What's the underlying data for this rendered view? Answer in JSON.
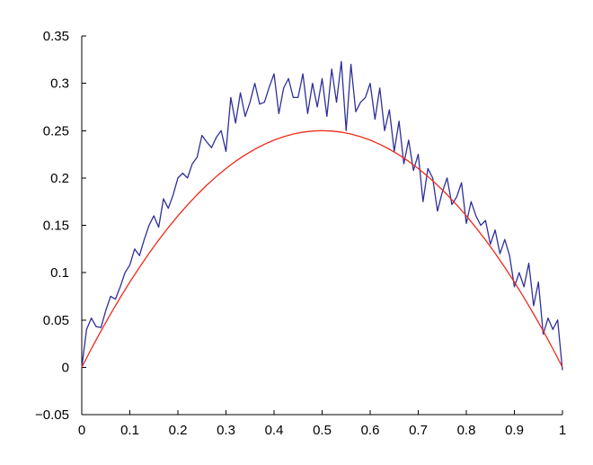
{
  "chart_data": {
    "type": "line",
    "title": "",
    "xlabel": "",
    "ylabel": "",
    "xlim": [
      0,
      1
    ],
    "ylim": [
      -0.05,
      0.35
    ],
    "grid": false,
    "legend": "none",
    "x_ticks": [
      0,
      0.1,
      0.2,
      0.3,
      0.4,
      0.5,
      0.6,
      0.7,
      0.8,
      0.9,
      1
    ],
    "x_tick_labels": [
      "0",
      "0.1",
      "0.2",
      "0.3",
      "0.4",
      "0.5",
      "0.6",
      "0.7",
      "0.8",
      "0.9",
      "1"
    ],
    "y_ticks": [
      -0.05,
      0,
      0.05,
      0.1,
      0.15,
      0.2,
      0.25,
      0.3,
      0.35
    ],
    "y_tick_labels": [
      "−0.05",
      "0",
      "0.05",
      "0.1",
      "0.15",
      "0.2",
      "0.25",
      "0.3",
      "0.35"
    ],
    "series": [
      {
        "color": "#2f2f9c",
        "x": [
          0.0,
          0.01,
          0.02,
          0.03,
          0.04,
          0.05,
          0.06,
          0.07,
          0.08,
          0.09,
          0.1,
          0.11,
          0.12,
          0.13,
          0.14,
          0.15,
          0.16,
          0.17,
          0.18,
          0.19,
          0.2,
          0.21,
          0.22,
          0.23,
          0.24,
          0.25,
          0.26,
          0.27,
          0.28,
          0.29,
          0.3,
          0.31,
          0.32,
          0.33,
          0.34,
          0.35,
          0.36,
          0.37,
          0.38,
          0.39,
          0.4,
          0.41,
          0.42,
          0.43,
          0.44,
          0.45,
          0.46,
          0.47,
          0.48,
          0.49,
          0.5,
          0.51,
          0.52,
          0.53,
          0.54,
          0.55,
          0.56,
          0.57,
          0.58,
          0.59,
          0.6,
          0.61,
          0.62,
          0.63,
          0.64,
          0.65,
          0.66,
          0.67,
          0.68,
          0.69,
          0.7,
          0.71,
          0.72,
          0.73,
          0.74,
          0.75,
          0.76,
          0.77,
          0.78,
          0.79,
          0.8,
          0.81,
          0.82,
          0.83,
          0.84,
          0.85,
          0.86,
          0.87,
          0.88,
          0.89,
          0.9,
          0.91,
          0.92,
          0.93,
          0.94,
          0.95,
          0.96,
          0.97,
          0.98,
          0.99,
          1.0
        ],
        "y": [
          0.0,
          0.04,
          0.052,
          0.043,
          0.042,
          0.06,
          0.075,
          0.072,
          0.085,
          0.1,
          0.108,
          0.125,
          0.118,
          0.135,
          0.15,
          0.16,
          0.148,
          0.178,
          0.168,
          0.182,
          0.2,
          0.205,
          0.2,
          0.215,
          0.222,
          0.245,
          0.238,
          0.232,
          0.243,
          0.25,
          0.228,
          0.285,
          0.258,
          0.29,
          0.265,
          0.28,
          0.3,
          0.278,
          0.28,
          0.296,
          0.31,
          0.268,
          0.295,
          0.305,
          0.285,
          0.285,
          0.31,
          0.268,
          0.3,
          0.275,
          0.305,
          0.265,
          0.315,
          0.28,
          0.323,
          0.25,
          0.32,
          0.27,
          0.28,
          0.285,
          0.3,
          0.262,
          0.295,
          0.25,
          0.272,
          0.228,
          0.26,
          0.215,
          0.24,
          0.208,
          0.225,
          0.175,
          0.21,
          0.2,
          0.165,
          0.185,
          0.2,
          0.172,
          0.18,
          0.195,
          0.152,
          0.175,
          0.16,
          0.15,
          0.155,
          0.13,
          0.145,
          0.12,
          0.135,
          0.118,
          0.085,
          0.1,
          0.085,
          0.11,
          0.065,
          0.09,
          0.035,
          0.052,
          0.04,
          0.05,
          -0.003
        ]
      },
      {
        "color": "#ee2a1b",
        "function": "y = x(1 - x)",
        "x": [
          0.0,
          0.02,
          0.04,
          0.06,
          0.08,
          0.1,
          0.12,
          0.14,
          0.16,
          0.18,
          0.2,
          0.22,
          0.24,
          0.26,
          0.28,
          0.3,
          0.32,
          0.34,
          0.36,
          0.38,
          0.4,
          0.42,
          0.44,
          0.46,
          0.48,
          0.5,
          0.52,
          0.54,
          0.56,
          0.58,
          0.6,
          0.62,
          0.64,
          0.66,
          0.68,
          0.7,
          0.72,
          0.74,
          0.76,
          0.78,
          0.8,
          0.82,
          0.84,
          0.86,
          0.88,
          0.9,
          0.92,
          0.94,
          0.96,
          0.98,
          1.0
        ],
        "y": [
          0.0,
          0.0196,
          0.0384,
          0.0564,
          0.0736,
          0.09,
          0.1056,
          0.1204,
          0.1344,
          0.1476,
          0.16,
          0.1716,
          0.1824,
          0.1924,
          0.2016,
          0.21,
          0.2176,
          0.2244,
          0.2304,
          0.2356,
          0.24,
          0.2436,
          0.2464,
          0.2484,
          0.2496,
          0.25,
          0.2496,
          0.2484,
          0.2464,
          0.2436,
          0.24,
          0.2356,
          0.2304,
          0.2244,
          0.2176,
          0.21,
          0.2016,
          0.1924,
          0.1824,
          0.1716,
          0.16,
          0.1476,
          0.1344,
          0.1204,
          0.1056,
          0.09,
          0.0736,
          0.0564,
          0.0384,
          0.0196,
          0.0
        ]
      }
    ]
  }
}
